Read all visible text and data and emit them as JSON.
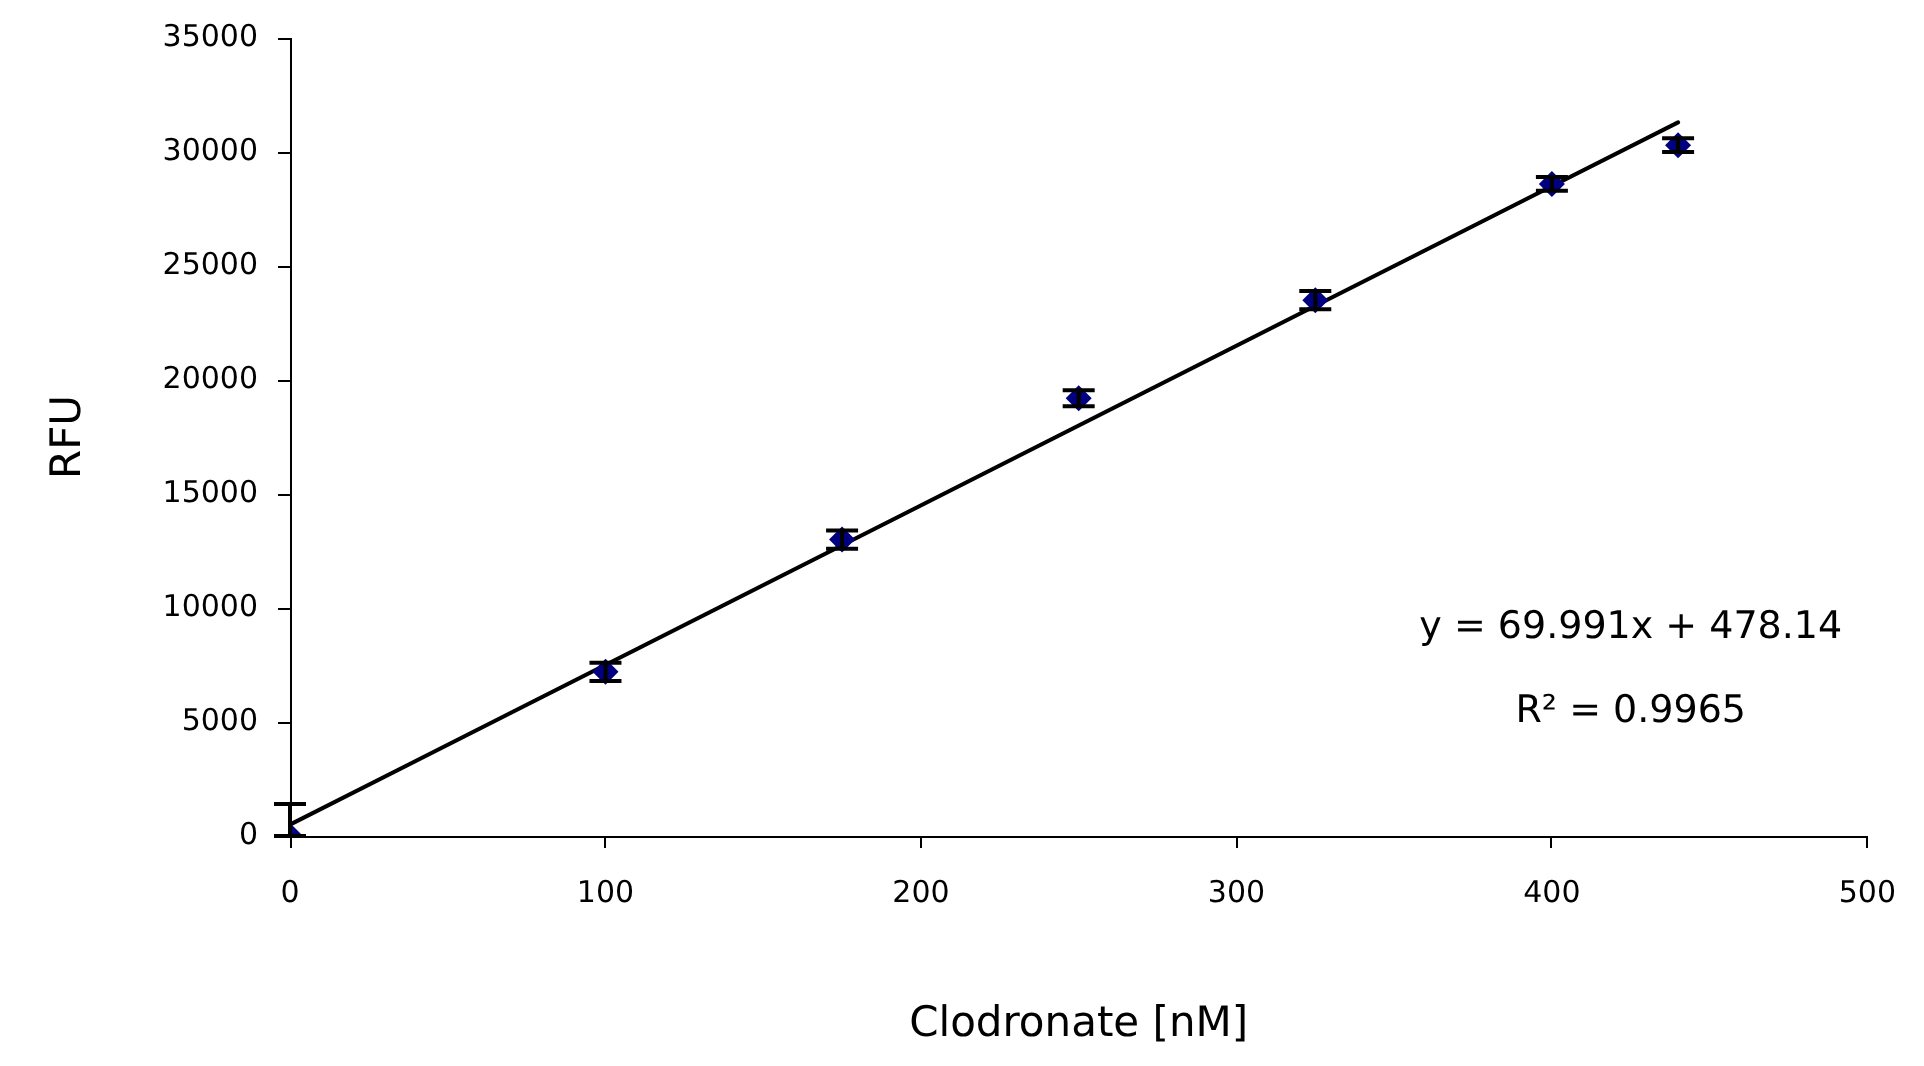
{
  "chart_data": {
    "type": "scatter",
    "xlabel": "Clodronate [nM]",
    "ylabel": "RFU",
    "x": [
      0,
      100,
      175,
      250,
      325,
      400,
      440
    ],
    "series": [
      {
        "color": "#000080",
        "values": [
          0,
          7200,
          13000,
          19200,
          23500,
          28600,
          30300
        ],
        "errors": [
          [
            0,
            1400
          ],
          400,
          400,
          350,
          400,
          300,
          300
        ]
      },
      {
        "type": "line",
        "color": "#000000",
        "x": [
          0,
          440
        ],
        "values": [
          500,
          31300
        ],
        "marker": "none"
      }
    ],
    "xlim": [
      0,
      500
    ],
    "xticks": [
      0,
      100,
      200,
      300,
      400,
      500
    ],
    "ylim": [
      0,
      35000
    ],
    "yticks": [
      0,
      5000,
      10000,
      15000,
      20000,
      25000,
      30000,
      35000
    ],
    "annotations": [
      "y = 69.991x + 478.14",
      "R² = 0.9965"
    ],
    "marker": "diamond",
    "grid": false,
    "legend": false
  }
}
